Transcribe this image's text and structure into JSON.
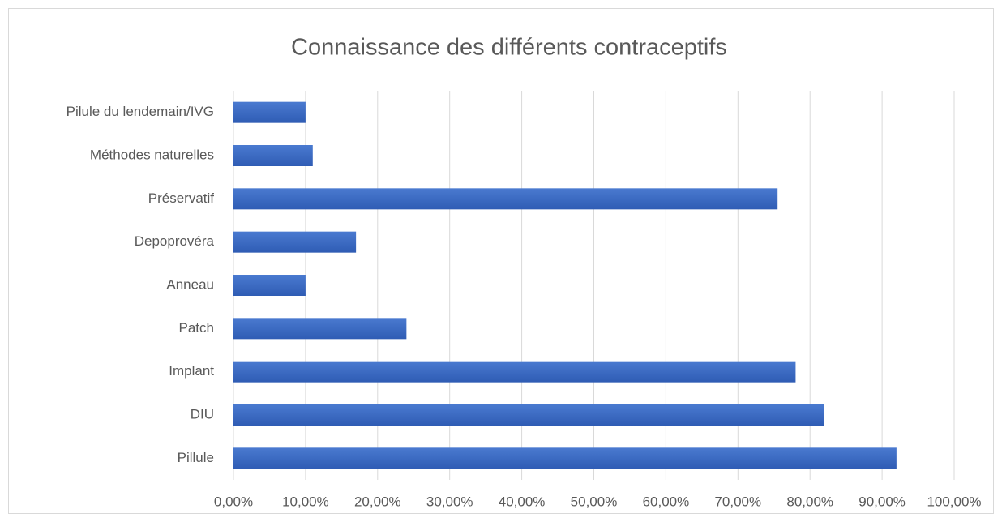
{
  "chart_data": {
    "type": "bar",
    "orientation": "horizontal",
    "title": "Connaissance des différents contraceptifs",
    "categories": [
      "Pillule",
      "DIU",
      "Implant",
      "Patch",
      "Anneau",
      "Depoprovéra",
      "Préservatif",
      "Méthodes naturelles",
      "Pilule du lendemain/IVG"
    ],
    "values": [
      92,
      82,
      78,
      24,
      10,
      17,
      75.5,
      11,
      10
    ],
    "color": "#4472c4",
    "xlim": [
      0,
      100
    ],
    "xticks": [
      {
        "value": 0,
        "label": "0,00%"
      },
      {
        "value": 10,
        "label": "10,00%"
      },
      {
        "value": 20,
        "label": "20,00%"
      },
      {
        "value": 30,
        "label": "30,00%"
      },
      {
        "value": 40,
        "label": "40,00%"
      },
      {
        "value": 50,
        "label": "50,00%"
      },
      {
        "value": 60,
        "label": "60,00%"
      },
      {
        "value": 70,
        "label": "70,00%"
      },
      {
        "value": 80,
        "label": "80,00%"
      },
      {
        "value": 90,
        "label": "90,00%"
      },
      {
        "value": 100,
        "label": "100,00%"
      }
    ],
    "grid": true
  }
}
